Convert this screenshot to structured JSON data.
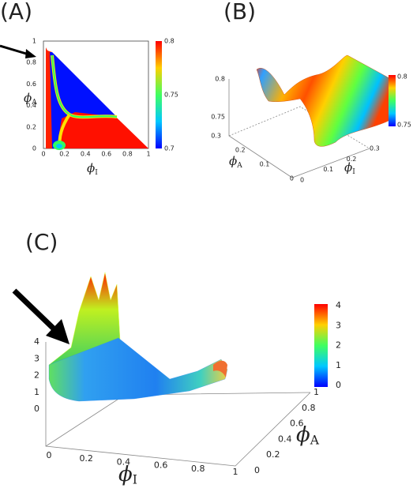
{
  "panels": [
    {
      "label": "(A)",
      "x_label": {
        "symbol": "ϕ",
        "sub": "I"
      },
      "y_label": {
        "symbol": "ϕ",
        "sub": "A"
      },
      "x_ticks": [
        0,
        0.2,
        0.4,
        0.6,
        0.8,
        1
      ],
      "y_ticks": [
        0,
        0.2,
        0.4,
        0.6,
        0.8,
        1
      ],
      "colorbar_ticks": [
        0.7,
        0.75,
        0.8
      ]
    },
    {
      "label": "(B)",
      "x_label": {
        "symbol": "ϕ",
        "sub": "I"
      },
      "y_label": {
        "symbol": "ϕ",
        "sub": "A"
      },
      "x_ticks": [
        0,
        0.1,
        0.2,
        0.3
      ],
      "y_ticks": [
        0,
        0.1,
        0.2,
        0.3
      ],
      "z_ticks": [
        0.75,
        0.8
      ],
      "colorbar_ticks": [
        0.75,
        0.8
      ]
    },
    {
      "label": "(C)",
      "x_label": {
        "symbol": "ϕ",
        "sub": "I"
      },
      "y_label": {
        "symbol": "ϕ",
        "sub": "A"
      },
      "x_ticks": [
        0,
        0.2,
        0.4,
        0.6,
        0.8,
        1
      ],
      "y_ticks": [
        0,
        0.2,
        0.4,
        0.6,
        0.8,
        1
      ],
      "z_ticks": [
        0,
        1,
        2,
        3,
        4
      ],
      "colorbar_ticks": [
        0,
        1,
        2,
        3,
        4
      ]
    }
  ]
}
